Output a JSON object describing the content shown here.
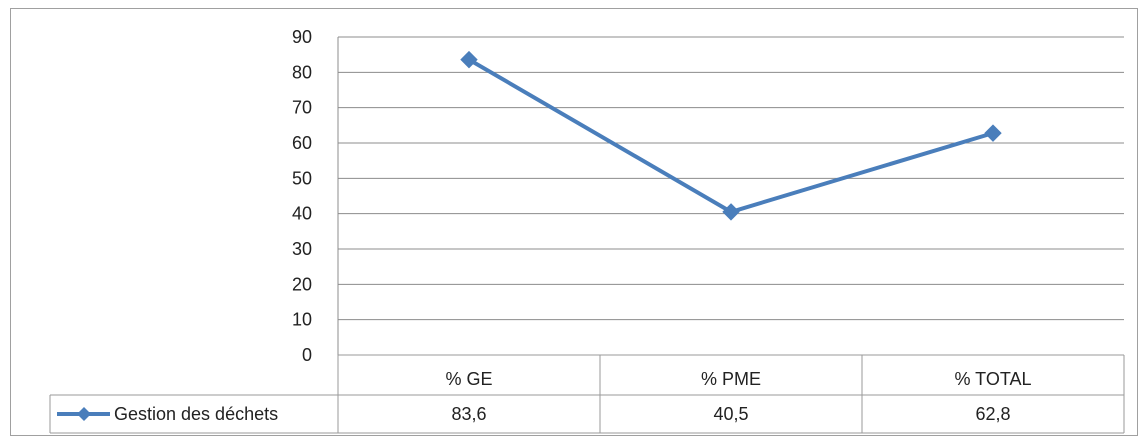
{
  "chart_data": {
    "type": "line",
    "categories": [
      "% GE",
      "% PME",
      "% TOTAL"
    ],
    "series": [
      {
        "name": "Gestion des déchets",
        "values": [
          83.6,
          40.5,
          62.8
        ],
        "value_labels": [
          "83,6",
          "40,5",
          "62,8"
        ]
      }
    ],
    "ylim": [
      0,
      90
    ],
    "yticks": [
      0,
      10,
      20,
      30,
      40,
      50,
      60,
      70,
      80,
      90
    ],
    "grid": true,
    "marker": "diamond",
    "data_table": true,
    "legend": "data-table-left"
  },
  "colors": {
    "series": "#4a7ebb",
    "grid": "#8c8c8c",
    "table_border": "#9a9a9a",
    "frame": "#a0a0a0"
  }
}
